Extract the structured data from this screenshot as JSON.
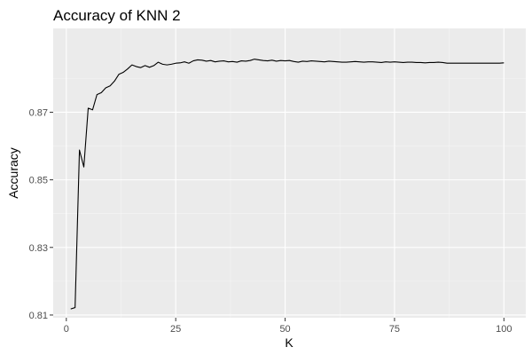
{
  "chart_data": {
    "type": "line",
    "title": "Accuracy of KNN 2",
    "xlabel": "K",
    "ylabel": "Accuracy",
    "xlim": [
      -3,
      105
    ],
    "ylim": [
      0.8092,
      0.8948
    ],
    "x_ticks": [
      0,
      25,
      50,
      75,
      100
    ],
    "x_tick_labels": [
      "0",
      "25",
      "50",
      "75",
      "100"
    ],
    "y_ticks": [
      0.81,
      0.83,
      0.85,
      0.87
    ],
    "y_tick_labels": [
      "0.81",
      "0.83",
      "0.85",
      "0.87"
    ],
    "grid": true,
    "legend": "none",
    "background": "#ebebeb",
    "line_color": "#000000",
    "series": [
      {
        "x": [
          1,
          2,
          3,
          4,
          5,
          6,
          7,
          8,
          9,
          10,
          11,
          12,
          13,
          14,
          15,
          16,
          17,
          18,
          19,
          20,
          21,
          22,
          23,
          24,
          25,
          26,
          27,
          28,
          29,
          30,
          31,
          32,
          33,
          34,
          35,
          36,
          37,
          38,
          39,
          40,
          41,
          42,
          43,
          44,
          45,
          46,
          47,
          48,
          49,
          50,
          51,
          52,
          53,
          54,
          55,
          56,
          57,
          58,
          59,
          60,
          61,
          62,
          63,
          64,
          65,
          66,
          67,
          68,
          69,
          70,
          71,
          72,
          73,
          74,
          75,
          76,
          77,
          78,
          79,
          80,
          81,
          82,
          83,
          84,
          85,
          86,
          87,
          88,
          89,
          90,
          91,
          92,
          93,
          94,
          95,
          96,
          97,
          98,
          99,
          100
        ],
        "values": [
          0.8118,
          0.8122,
          0.8588,
          0.8538,
          0.8712,
          0.8707,
          0.8752,
          0.8758,
          0.8772,
          0.8778,
          0.8792,
          0.8812,
          0.8818,
          0.8828,
          0.884,
          0.8835,
          0.8832,
          0.8838,
          0.8833,
          0.8838,
          0.8848,
          0.8842,
          0.884,
          0.8842,
          0.8845,
          0.8846,
          0.8849,
          0.8845,
          0.8852,
          0.8855,
          0.8854,
          0.8851,
          0.8853,
          0.8849,
          0.8851,
          0.8852,
          0.8849,
          0.885,
          0.8848,
          0.8852,
          0.8851,
          0.8853,
          0.8857,
          0.8855,
          0.8853,
          0.8852,
          0.8854,
          0.8851,
          0.8853,
          0.8852,
          0.8853,
          0.885,
          0.8848,
          0.8851,
          0.885,
          0.8852,
          0.8851,
          0.885,
          0.8849,
          0.8851,
          0.885,
          0.8849,
          0.8848,
          0.8848,
          0.8849,
          0.885,
          0.8849,
          0.8848,
          0.8849,
          0.8849,
          0.8848,
          0.8847,
          0.8849,
          0.8848,
          0.8849,
          0.8848,
          0.8847,
          0.8848,
          0.8848,
          0.8847,
          0.8847,
          0.8846,
          0.8847,
          0.8847,
          0.8848,
          0.8847,
          0.8845,
          0.8845,
          0.8845,
          0.8845,
          0.8845,
          0.8845,
          0.8845,
          0.8845,
          0.8845,
          0.8845,
          0.8845,
          0.8845,
          0.8845,
          0.8846
        ]
      }
    ]
  }
}
